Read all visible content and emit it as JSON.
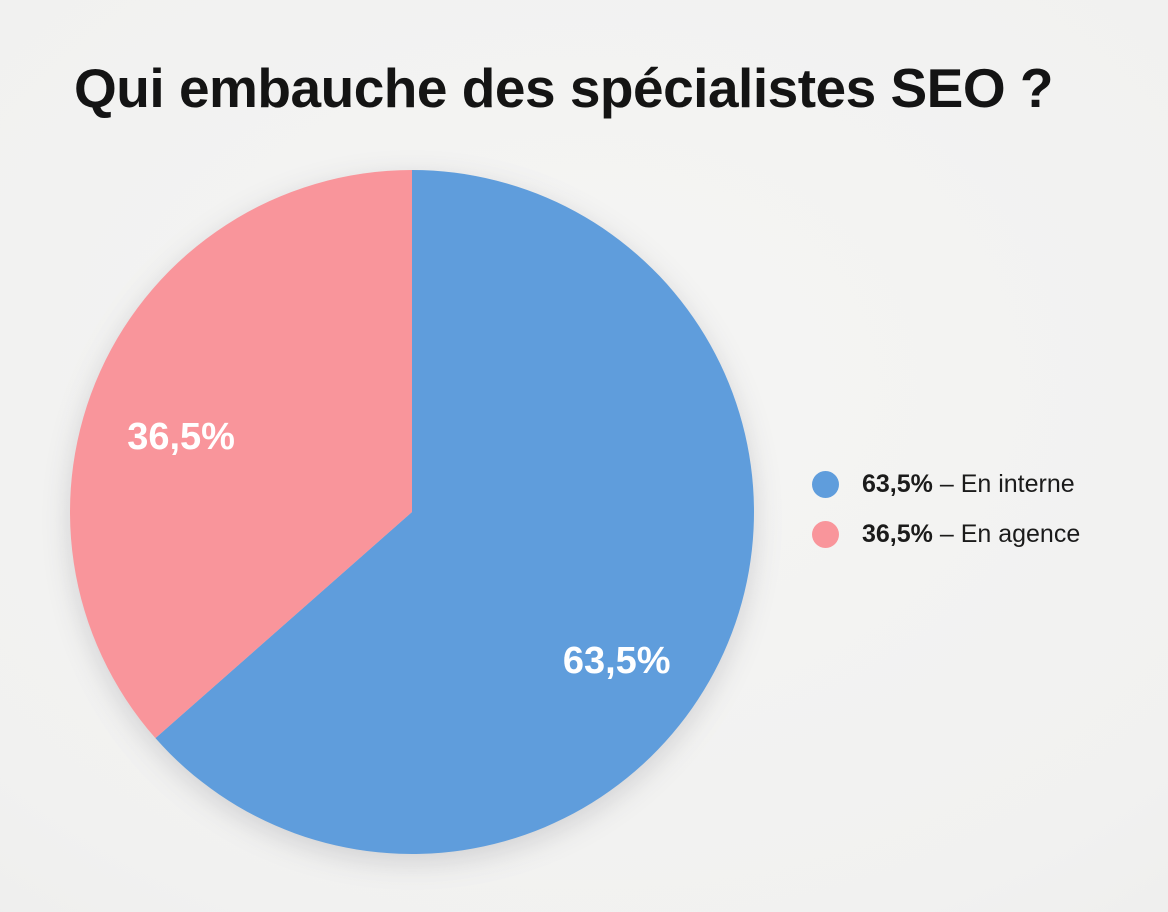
{
  "page": {
    "title": "Qui embauche des spécialistes SEO ?"
  },
  "theme": {
    "background": "#f1f1f0",
    "text_color": "#141414",
    "slice_label_color": "#ffffff"
  },
  "chart_data": {
    "type": "pie",
    "title": "Qui embauche des spécialistes SEO ?",
    "legend_position": "right",
    "start_angle_deg": 0,
    "direction": "clockwise",
    "separator": " – ",
    "slice_label_color": "#ffffff",
    "categories": [
      "En interne",
      "En agence"
    ],
    "values": [
      63.5,
      36.5
    ],
    "slices": [
      {
        "label": "En interne",
        "value": 63.5,
        "value_label": "63,5%",
        "color": "#5f9ddc",
        "legend_text": "63,5% – En interne",
        "label_angle_deg": 126,
        "label_radius_frac": 0.74
      },
      {
        "label": "En agence",
        "value": 36.5,
        "value_label": "36,5%",
        "color": "#f9959b",
        "legend_text": "36,5% – En agence",
        "label_angle_deg": 288,
        "label_radius_frac": 0.71
      }
    ]
  }
}
